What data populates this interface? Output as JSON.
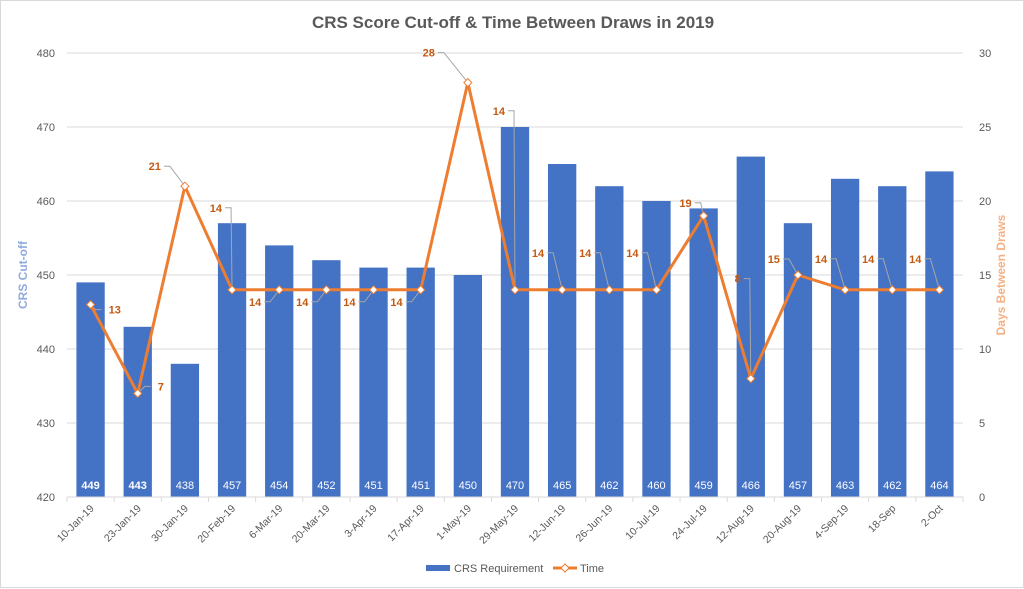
{
  "chart_data": {
    "type": "bar+line",
    "title": "CRS Score Cut-off & Time Between Draws in 2019",
    "categories": [
      "10-Jan-19",
      "23-Jan-19",
      "30-Jan-19",
      "20-Feb-19",
      "6-Mar-19",
      "20-Mar-19",
      "3-Apr-19",
      "17-Apr-19",
      "1-May-19",
      "29-May-19",
      "12-Jun-19",
      "26-Jun-19",
      "10-Jul-19",
      "24-Jul-19",
      "12-Aug-19",
      "20-Aug-19",
      "4-Sep-19",
      "18-Sep",
      "2-Oct"
    ],
    "series": [
      {
        "name": "CRS Requirement",
        "type": "bar",
        "axis": "left",
        "color": "#4472c4",
        "values": [
          449,
          443,
          438,
          457,
          454,
          452,
          451,
          451,
          450,
          470,
          465,
          462,
          460,
          459,
          466,
          457,
          463,
          462,
          464
        ],
        "bold_labels": [
          true,
          true,
          false,
          false,
          false,
          false,
          false,
          false,
          false,
          false,
          false,
          false,
          false,
          false,
          false,
          false,
          false,
          false,
          false
        ]
      },
      {
        "name": "Time",
        "type": "line",
        "axis": "right",
        "color": "#ed7d31",
        "values": [
          13,
          7,
          21,
          14,
          14,
          14,
          14,
          14,
          28,
          14,
          14,
          14,
          14,
          19,
          8,
          15,
          14,
          14,
          14
        ]
      }
    ],
    "left_axis": {
      "label": "CRS Cut-off",
      "ylim": [
        420,
        480
      ],
      "ticks": [
        420,
        430,
        440,
        450,
        460,
        470,
        480
      ],
      "color": "#8faadc"
    },
    "right_axis": {
      "label": "Days Between Draws",
      "ylim": [
        0,
        30
      ],
      "ticks": [
        0,
        5,
        10,
        15,
        20,
        25,
        30
      ],
      "color": "#f4b183"
    },
    "grid": true,
    "legend": {
      "position": "bottom",
      "entries": [
        "CRS Requirement",
        "Time"
      ]
    }
  }
}
